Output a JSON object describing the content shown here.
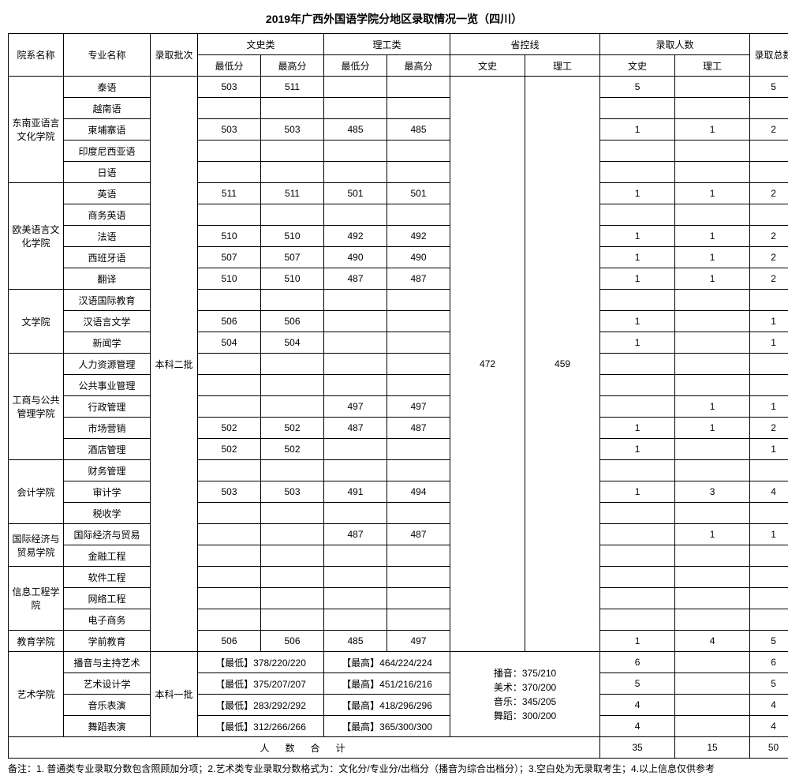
{
  "title": "2019年广西外国语学院分地区录取情况一览（四川）",
  "headers": {
    "dept": "院系名称",
    "major": "专业名称",
    "batch": "录取批次",
    "arts_group": "文史类",
    "sci_group": "理工类",
    "line_group": "省控线",
    "admit_group": "录取人数",
    "total": "录取总数",
    "min": "最低分",
    "max": "最高分",
    "arts": "文史",
    "sci": "理工"
  },
  "batch_regular": "本科二批",
  "batch_art": "本科一批",
  "prov_line_arts": "472",
  "prov_line_sci": "459",
  "depts": [
    {
      "name": "东南亚语言文化学院",
      "rows": [
        {
          "major": "泰语",
          "a_min": "503",
          "a_max": "511",
          "s_min": "",
          "s_max": "",
          "cnt_a": "5",
          "cnt_s": "",
          "tot": "5"
        },
        {
          "major": "越南语",
          "a_min": "",
          "a_max": "",
          "s_min": "",
          "s_max": "",
          "cnt_a": "",
          "cnt_s": "",
          "tot": ""
        },
        {
          "major": "柬埔寨语",
          "a_min": "503",
          "a_max": "503",
          "s_min": "485",
          "s_max": "485",
          "cnt_a": "1",
          "cnt_s": "1",
          "tot": "2"
        },
        {
          "major": "印度尼西亚语",
          "a_min": "",
          "a_max": "",
          "s_min": "",
          "s_max": "",
          "cnt_a": "",
          "cnt_s": "",
          "tot": ""
        },
        {
          "major": "日语",
          "a_min": "",
          "a_max": "",
          "s_min": "",
          "s_max": "",
          "cnt_a": "",
          "cnt_s": "",
          "tot": ""
        }
      ]
    },
    {
      "name": "欧美语言文化学院",
      "rows": [
        {
          "major": "英语",
          "a_min": "511",
          "a_max": "511",
          "s_min": "501",
          "s_max": "501",
          "cnt_a": "1",
          "cnt_s": "1",
          "tot": "2"
        },
        {
          "major": "商务英语",
          "a_min": "",
          "a_max": "",
          "s_min": "",
          "s_max": "",
          "cnt_a": "",
          "cnt_s": "",
          "tot": ""
        },
        {
          "major": "法语",
          "a_min": "510",
          "a_max": "510",
          "s_min": "492",
          "s_max": "492",
          "cnt_a": "1",
          "cnt_s": "1",
          "tot": "2"
        },
        {
          "major": "西班牙语",
          "a_min": "507",
          "a_max": "507",
          "s_min": "490",
          "s_max": "490",
          "cnt_a": "1",
          "cnt_s": "1",
          "tot": "2"
        },
        {
          "major": "翻译",
          "a_min": "510",
          "a_max": "510",
          "s_min": "487",
          "s_max": "487",
          "cnt_a": "1",
          "cnt_s": "1",
          "tot": "2"
        }
      ]
    },
    {
      "name": "文学院",
      "rows": [
        {
          "major": "汉语国际教育",
          "a_min": "",
          "a_max": "",
          "s_min": "",
          "s_max": "",
          "cnt_a": "",
          "cnt_s": "",
          "tot": ""
        },
        {
          "major": "汉语言文学",
          "a_min": "506",
          "a_max": "506",
          "s_min": "",
          "s_max": "",
          "cnt_a": "1",
          "cnt_s": "",
          "tot": "1"
        },
        {
          "major": "新闻学",
          "a_min": "504",
          "a_max": "504",
          "s_min": "",
          "s_max": "",
          "cnt_a": "1",
          "cnt_s": "",
          "tot": "1"
        }
      ]
    },
    {
      "name": "工商与公共管理学院",
      "rows": [
        {
          "major": "人力资源管理",
          "a_min": "",
          "a_max": "",
          "s_min": "",
          "s_max": "",
          "cnt_a": "",
          "cnt_s": "",
          "tot": ""
        },
        {
          "major": "公共事业管理",
          "a_min": "",
          "a_max": "",
          "s_min": "",
          "s_max": "",
          "cnt_a": "",
          "cnt_s": "",
          "tot": ""
        },
        {
          "major": "行政管理",
          "a_min": "",
          "a_max": "",
          "s_min": "497",
          "s_max": "497",
          "cnt_a": "",
          "cnt_s": "1",
          "tot": "1"
        },
        {
          "major": "市场营销",
          "a_min": "502",
          "a_max": "502",
          "s_min": "487",
          "s_max": "487",
          "cnt_a": "1",
          "cnt_s": "1",
          "tot": "2"
        },
        {
          "major": "酒店管理",
          "a_min": "502",
          "a_max": "502",
          "s_min": "",
          "s_max": "",
          "cnt_a": "1",
          "cnt_s": "",
          "tot": "1"
        }
      ]
    },
    {
      "name": "会计学院",
      "rows": [
        {
          "major": "财务管理",
          "a_min": "",
          "a_max": "",
          "s_min": "",
          "s_max": "",
          "cnt_a": "",
          "cnt_s": "",
          "tot": ""
        },
        {
          "major": "审计学",
          "a_min": "503",
          "a_max": "503",
          "s_min": "491",
          "s_max": "494",
          "cnt_a": "1",
          "cnt_s": "3",
          "tot": "4"
        },
        {
          "major": "税收学",
          "a_min": "",
          "a_max": "",
          "s_min": "",
          "s_max": "",
          "cnt_a": "",
          "cnt_s": "",
          "tot": ""
        }
      ]
    },
    {
      "name": "国际经济与贸易学院",
      "rows": [
        {
          "major": "国际经济与贸易",
          "a_min": "",
          "a_max": "",
          "s_min": "487",
          "s_max": "487",
          "cnt_a": "",
          "cnt_s": "1",
          "tot": "1"
        },
        {
          "major": "金融工程",
          "a_min": "",
          "a_max": "",
          "s_min": "",
          "s_max": "",
          "cnt_a": "",
          "cnt_s": "",
          "tot": ""
        }
      ]
    },
    {
      "name": "信息工程学院",
      "rows": [
        {
          "major": "软件工程",
          "a_min": "",
          "a_max": "",
          "s_min": "",
          "s_max": "",
          "cnt_a": "",
          "cnt_s": "",
          "tot": ""
        },
        {
          "major": "网络工程",
          "a_min": "",
          "a_max": "",
          "s_min": "",
          "s_max": "",
          "cnt_a": "",
          "cnt_s": "",
          "tot": ""
        },
        {
          "major": "电子商务",
          "a_min": "",
          "a_max": "",
          "s_min": "",
          "s_max": "",
          "cnt_a": "",
          "cnt_s": "",
          "tot": ""
        }
      ]
    },
    {
      "name": "教育学院",
      "rows": [
        {
          "major": "学前教育",
          "a_min": "506",
          "a_max": "506",
          "s_min": "485",
          "s_max": "497",
          "cnt_a": "1",
          "cnt_s": "4",
          "tot": "5"
        }
      ]
    }
  ],
  "art_dept": "艺术学院",
  "art_rows": [
    {
      "major": "播音与主持艺术",
      "min": "【最低】378/220/220",
      "max": "【最高】464/224/224",
      "cnt_a": "6",
      "cnt_s": "",
      "tot": "6"
    },
    {
      "major": "艺术设计学",
      "min": "【最低】375/207/207",
      "max": "【最高】451/216/216",
      "cnt_a": "5",
      "cnt_s": "",
      "tot": "5"
    },
    {
      "major": "音乐表演",
      "min": "【最低】283/292/292",
      "max": "【最高】418/296/296",
      "cnt_a": "4",
      "cnt_s": "",
      "tot": "4"
    },
    {
      "major": "舞蹈表演",
      "min": "【最低】312/266/266",
      "max": "【最高】365/300/300",
      "cnt_a": "4",
      "cnt_s": "",
      "tot": "4"
    }
  ],
  "art_line_text": "播音：375/210\n美术：370/200\n音乐：345/205\n舞蹈：300/200",
  "totals": {
    "label": "人 数 合 计",
    "cnt_a": "35",
    "cnt_s": "15",
    "tot": "50"
  },
  "note": "备注：1. 普通类专业录取分数包含照顾加分项；2.艺术类专业录取分数格式为：文化分/专业分/出档分（播音为综合出档分）；3.空白处为无录取考生；4.以上信息仅供参考"
}
